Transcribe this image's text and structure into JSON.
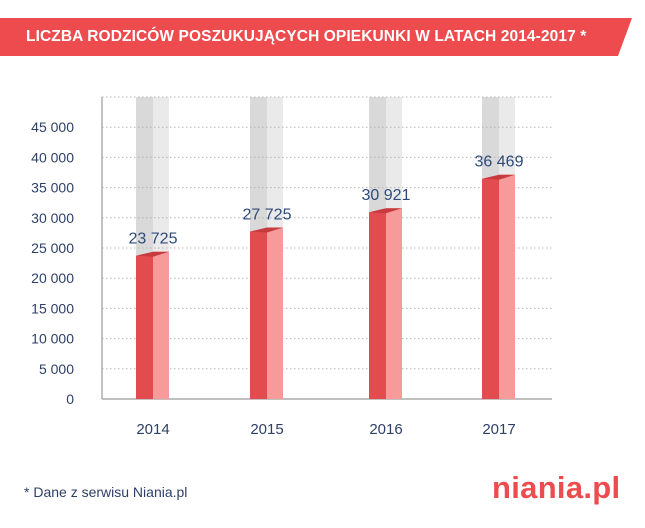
{
  "header": {
    "title": "LICZBA RODZICÓW POSZUKUJĄCYCH OPIEKUNKI W LATACH 2014-2017 *"
  },
  "chart_data": {
    "type": "bar",
    "title": "LICZBA RODZICÓW POSZUKUJĄCYCH OPIEKUNKI W LATACH 2014-2017 *",
    "categories": [
      "2014",
      "2015",
      "2016",
      "2017"
    ],
    "values": [
      23725,
      27725,
      30921,
      36469
    ],
    "data_labels": [
      "23 725",
      "27 725",
      "30 921",
      "36 469"
    ],
    "y_ticks": [
      0,
      5000,
      10000,
      15000,
      20000,
      25000,
      30000,
      35000,
      40000,
      45000
    ],
    "y_tick_labels": [
      "0",
      "5 000",
      "10 000",
      "15 000",
      "20 000",
      "25 000",
      "30 000",
      "35 000",
      "40 000",
      "45 000"
    ],
    "ylim": [
      0,
      50000
    ],
    "xlabel": "",
    "ylabel": "",
    "grid": true,
    "colors": {
      "bar_front": "#e34c4f",
      "bar_side": "#f79a9a",
      "bar_top": "#c73a3e",
      "track_front": "#d9d9d9",
      "track_side": "#eaeaea",
      "grid": "#b4b4b4",
      "axis": "#9a9a9a"
    }
  },
  "footer": {
    "footnote": "* Dane z serwisu Niania.pl",
    "logo": "niania.pl"
  },
  "colors": {
    "accent": "#ee4b4e",
    "text": "#2e3f66"
  }
}
